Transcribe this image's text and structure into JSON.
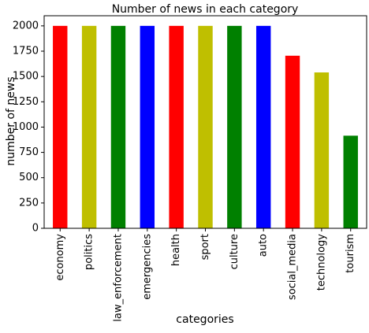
{
  "chart_data": {
    "type": "bar",
    "title": "Number of news in each category",
    "xlabel": "categories",
    "ylabel": "number of news",
    "ylim": [
      0,
      2100
    ],
    "yticks": [
      0,
      250,
      500,
      750,
      1000,
      1250,
      1500,
      1750,
      2000
    ],
    "grid": false,
    "categories": [
      "economy",
      "politics",
      "law_enforcement",
      "emergencies",
      "health",
      "sport",
      "culture",
      "auto",
      "social_media",
      "technology",
      "tourism"
    ],
    "values": [
      2000,
      2000,
      2000,
      2000,
      2000,
      2000,
      2000,
      2000,
      1705,
      1540,
      915
    ],
    "colors": [
      "#ff0000",
      "#bfbf00",
      "#008000",
      "#0000ff",
      "#ff0000",
      "#bfbf00",
      "#008000",
      "#0000ff",
      "#ff0000",
      "#bfbf00",
      "#008000"
    ]
  }
}
